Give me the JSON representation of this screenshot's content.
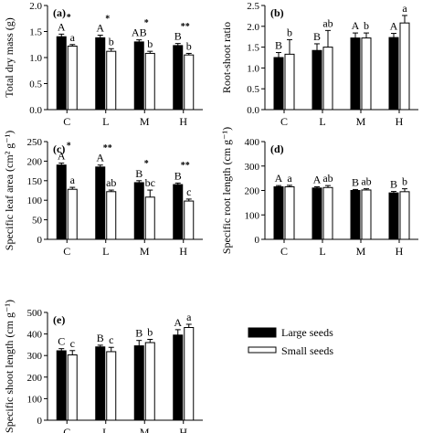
{
  "chart_data": [
    {
      "panel": "(a)",
      "type": "bar",
      "ylabel": "Total dry mass (g)",
      "ylim": [
        0,
        2.0
      ],
      "yticks": [
        "0.0",
        "0.5",
        "1.0",
        "1.5",
        "2.0"
      ],
      "categories": [
        "C",
        "L",
        "M",
        "H"
      ],
      "series": [
        {
          "values": [
            1.4,
            1.38,
            1.3,
            1.23
          ],
          "errors": [
            0.05,
            0.05,
            0.04,
            0.04
          ],
          "letters": [
            "A",
            "A",
            "AB",
            "B"
          ]
        },
        {
          "values": [
            1.22,
            1.12,
            1.08,
            1.05
          ],
          "errors": [
            0.03,
            0.05,
            0.04,
            0.03
          ],
          "letters": [
            "a",
            "b",
            "b",
            "b"
          ]
        }
      ],
      "significance": [
        "*",
        "*",
        "*",
        "**"
      ]
    },
    {
      "panel": "(b)",
      "type": "bar",
      "ylabel": "Root-shoot ratio",
      "ylim": [
        0,
        2.5
      ],
      "yticks": [
        "0.0",
        "0.5",
        "1.0",
        "1.5",
        "2.0",
        "2.5"
      ],
      "categories": [
        "C",
        "L",
        "M",
        "H"
      ],
      "series": [
        {
          "values": [
            1.25,
            1.42,
            1.72,
            1.73
          ],
          "errors": [
            0.12,
            0.16,
            0.12,
            0.1
          ],
          "letters": [
            "B",
            "B",
            "A",
            "A"
          ]
        },
        {
          "values": [
            1.33,
            1.5,
            1.72,
            2.08
          ],
          "errors": [
            0.35,
            0.4,
            0.12,
            0.18
          ],
          "letters": [
            "b",
            "ab",
            "b",
            "a"
          ]
        }
      ],
      "significance": [
        "",
        "",
        "",
        ""
      ]
    },
    {
      "panel": "(c)",
      "type": "bar",
      "ylabel": "Specific leaf area (cm² g⁻¹)",
      "ylim": [
        0,
        250
      ],
      "yticks": [
        "0",
        "50",
        "100",
        "150",
        "200",
        "250"
      ],
      "categories": [
        "C",
        "L",
        "M",
        "H"
      ],
      "series": [
        {
          "values": [
            190,
            185,
            145,
            140
          ],
          "errors": [
            5,
            5,
            5,
            4
          ],
          "letters": [
            "A",
            "A",
            "B",
            "B"
          ]
        },
        {
          "values": [
            128,
            122,
            108,
            98
          ],
          "errors": [
            5,
            4,
            18,
            5
          ],
          "letters": [
            "a",
            "ab",
            "bc",
            "c"
          ]
        }
      ],
      "significance": [
        "*",
        "**",
        "*",
        "**"
      ]
    },
    {
      "panel": "(d)",
      "type": "bar",
      "ylabel": "Specific root length (cm g⁻¹)",
      "ylim": [
        0,
        400
      ],
      "yticks": [
        "0",
        "100",
        "200",
        "300",
        "400"
      ],
      "categories": [
        "C",
        "L",
        "M",
        "H"
      ],
      "series": [
        {
          "values": [
            215,
            210,
            200,
            190
          ],
          "errors": [
            5,
            5,
            4,
            6
          ],
          "letters": [
            "A",
            "A",
            "B",
            "B"
          ]
        },
        {
          "values": [
            215,
            212,
            202,
            195
          ],
          "errors": [
            6,
            8,
            5,
            12
          ],
          "letters": [
            "a",
            "ab",
            "ab",
            "b"
          ]
        }
      ],
      "significance": [
        "",
        "",
        "",
        ""
      ]
    },
    {
      "panel": "(e)",
      "type": "bar",
      "ylabel": "Specific shoot length (cm g⁻¹)",
      "ylim": [
        0,
        500
      ],
      "yticks": [
        "0",
        "100",
        "200",
        "300",
        "400",
        "500"
      ],
      "categories": [
        "C",
        "L",
        "M",
        "H"
      ],
      "series": [
        {
          "values": [
            322,
            340,
            345,
            395
          ],
          "errors": [
            10,
            8,
            25,
            25
          ],
          "letters": [
            "C",
            "B",
            "B",
            "A"
          ]
        },
        {
          "values": [
            303,
            318,
            360,
            430
          ],
          "errors": [
            20,
            20,
            15,
            15
          ],
          "letters": [
            "c",
            "c",
            "b",
            "a"
          ]
        }
      ],
      "significance": [
        "",
        "",
        "",
        ""
      ]
    }
  ],
  "legend": {
    "items": [
      "Large seeds",
      "Small seeds"
    ],
    "colors": [
      "#000000",
      "#ffffff"
    ]
  }
}
